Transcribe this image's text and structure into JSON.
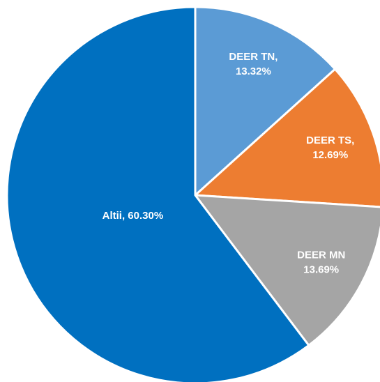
{
  "chart_data": {
    "type": "pie",
    "values": [
      13.32,
      12.69,
      13.69,
      60.3
    ],
    "value_labels": [
      [
        "DEER TN,",
        "13.32%"
      ],
      [
        "DEER TS,",
        "12.69%"
      ],
      [
        "DEER MN",
        "13.69%"
      ],
      [
        "Altii, 60.30%"
      ]
    ],
    "colors": [
      "#5b9bd5",
      "#ed7d31",
      "#a5a5a5",
      "#0070c0"
    ],
    "start_angle": 0,
    "direction": "clockwise"
  }
}
